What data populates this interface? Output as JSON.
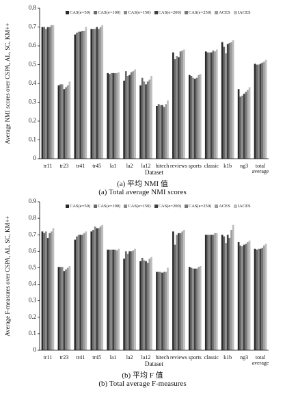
{
  "chart_data": [
    {
      "type": "bar",
      "ylabel": "Average NMI scores over CSPA, AL, SC, KM++",
      "xlabel": "Dataset",
      "caption": [
        "(a) 平均 NMI 值",
        "(a) Total average NMI scores"
      ],
      "categories": [
        "tr11",
        "tr23",
        "tr41",
        "tr45",
        "la1",
        "la2",
        "la12",
        "hitech",
        "reviews",
        "sports",
        "classic",
        "k1b",
        "ng3",
        "total average"
      ],
      "ylim": [
        0,
        0.8
      ],
      "yticks": [
        0,
        0.1,
        0.2,
        0.3,
        0.4,
        0.5,
        0.6,
        0.7,
        0.8
      ],
      "legend": "top",
      "series": [
        {
          "name": "CAS(e=50)",
          "color": "#2a2a2a",
          "values": [
            0.7,
            0.39,
            0.66,
            0.69,
            0.455,
            0.415,
            0.39,
            0.28,
            0.565,
            0.445,
            0.57,
            0.62,
            0.37,
            0.505
          ]
        },
        {
          "name": "CAS(e=100)",
          "color": "#6a6a6a",
          "values": [
            0.7,
            0.395,
            0.67,
            0.69,
            0.45,
            0.465,
            0.43,
            0.29,
            0.53,
            0.44,
            0.565,
            0.595,
            0.33,
            0.5
          ]
        },
        {
          "name": "CAS(e=150)",
          "color": "#8a8a8a",
          "values": [
            0.69,
            0.395,
            0.675,
            0.69,
            0.455,
            0.44,
            0.41,
            0.285,
            0.545,
            0.43,
            0.565,
            0.56,
            0.335,
            0.5
          ]
        },
        {
          "name": "CAS(e=200)",
          "color": "#404040",
          "values": [
            0.7,
            0.37,
            0.675,
            0.7,
            0.455,
            0.445,
            0.395,
            0.285,
            0.54,
            0.425,
            0.565,
            0.61,
            0.345,
            0.505
          ]
        },
        {
          "name": "CAS(e=250)",
          "color": "#777777",
          "values": [
            0.7,
            0.38,
            0.68,
            0.69,
            0.455,
            0.46,
            0.41,
            0.275,
            0.57,
            0.43,
            0.575,
            0.615,
            0.355,
            0.51
          ]
        },
        {
          "name": "ACES",
          "color": "#9c9c9c",
          "values": [
            0.71,
            0.39,
            0.68,
            0.7,
            0.455,
            0.465,
            0.42,
            0.29,
            0.575,
            0.445,
            0.57,
            0.62,
            0.365,
            0.515
          ]
        },
        {
          "name": "IACES",
          "color": "#bdbdbd",
          "values": [
            0.71,
            0.41,
            0.7,
            0.71,
            0.46,
            0.475,
            0.44,
            0.31,
            0.58,
            0.45,
            0.58,
            0.63,
            0.38,
            0.525
          ]
        }
      ]
    },
    {
      "type": "bar",
      "ylabel": "Average F-measures over CSPA, AL, SC, KM++",
      "xlabel": "Dataset",
      "caption": [
        "(b) 平均 F 值",
        "(b) Total average F-measures"
      ],
      "categories": [
        "tr11",
        "tr23",
        "tr41",
        "tr45",
        "la1",
        "la2",
        "la12",
        "hitech",
        "reviews",
        "sports",
        "classic",
        "k1b",
        "ng3",
        "total average"
      ],
      "ylim": [
        0,
        0.9
      ],
      "yticks": [
        0,
        0.1,
        0.2,
        0.3,
        0.4,
        0.5,
        0.6,
        0.7,
        0.8,
        0.9
      ],
      "legend": "top",
      "series": [
        {
          "name": "CAS(e=50)",
          "color": "#2a2a2a",
          "values": [
            0.72,
            0.505,
            0.67,
            0.72,
            0.61,
            0.555,
            0.54,
            0.475,
            0.72,
            0.505,
            0.7,
            0.7,
            0.655,
            0.615
          ]
        },
        {
          "name": "CAS(e=100)",
          "color": "#6a6a6a",
          "values": [
            0.71,
            0.505,
            0.69,
            0.73,
            0.61,
            0.6,
            0.56,
            0.475,
            0.64,
            0.5,
            0.7,
            0.69,
            0.635,
            0.61
          ]
        },
        {
          "name": "CAS(e=150)",
          "color": "#8a8a8a",
          "values": [
            0.72,
            0.505,
            0.7,
            0.75,
            0.61,
            0.585,
            0.545,
            0.475,
            0.7,
            0.495,
            0.7,
            0.65,
            0.63,
            0.615
          ]
        },
        {
          "name": "CAS(e=200)",
          "color": "#404040",
          "values": [
            0.68,
            0.48,
            0.7,
            0.74,
            0.61,
            0.6,
            0.54,
            0.47,
            0.71,
            0.495,
            0.7,
            0.7,
            0.64,
            0.615
          ]
        },
        {
          "name": "CAS(e=250)",
          "color": "#777777",
          "values": [
            0.71,
            0.49,
            0.7,
            0.74,
            0.61,
            0.6,
            0.53,
            0.475,
            0.71,
            0.495,
            0.7,
            0.68,
            0.645,
            0.62
          ]
        },
        {
          "name": "ACES",
          "color": "#9c9c9c",
          "values": [
            0.72,
            0.5,
            0.71,
            0.75,
            0.605,
            0.605,
            0.555,
            0.475,
            0.72,
            0.505,
            0.71,
            0.73,
            0.655,
            0.635
          ]
        },
        {
          "name": "IACES",
          "color": "#bdbdbd",
          "values": [
            0.74,
            0.51,
            0.72,
            0.76,
            0.615,
            0.615,
            0.565,
            0.5,
            0.73,
            0.51,
            0.71,
            0.76,
            0.665,
            0.645
          ]
        }
      ]
    }
  ]
}
